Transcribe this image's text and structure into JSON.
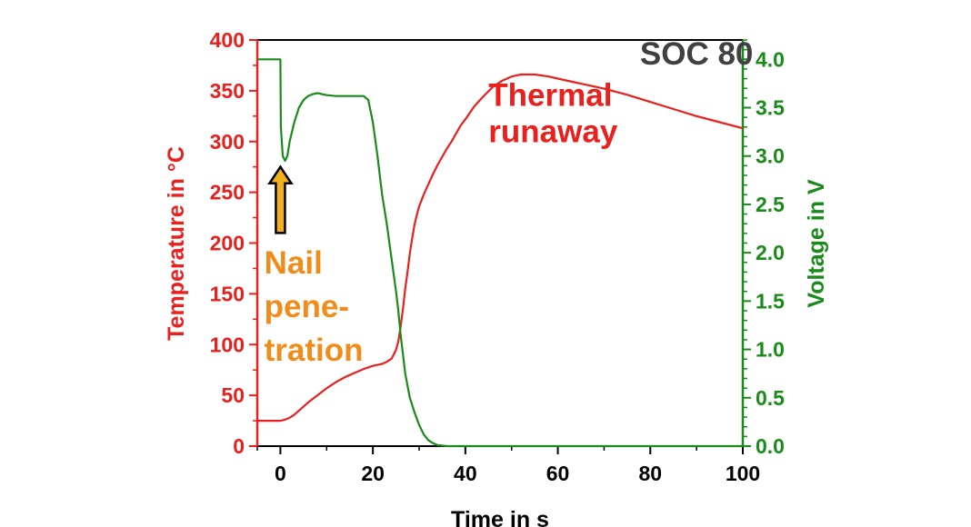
{
  "chart_data": {
    "type": "line",
    "title": "",
    "xlabel": "Time in s",
    "ylabel": "Temperature in °C",
    "y2label": "Voltage in V",
    "xlim": [
      -5,
      100
    ],
    "ylim": [
      0,
      400
    ],
    "y2lim": [
      0,
      4.2
    ],
    "x_ticks": [
      "0",
      "20",
      "40",
      "60",
      "80",
      "100"
    ],
    "y_ticks": [
      "0",
      "50",
      "100",
      "150",
      "200",
      "250",
      "300",
      "350",
      "400"
    ],
    "y2_ticks": [
      "0.0",
      "0.5",
      "1.0",
      "1.5",
      "2.0",
      "2.5",
      "3.0",
      "3.5",
      "4.0"
    ],
    "grid": false,
    "colors": {
      "temperature": "#e8201e",
      "voltage": "#1a8a1a",
      "annotation_nail": "#f08c1a",
      "soc_label": "#404040",
      "arrow_fill": "#f2b01e"
    },
    "series": [
      {
        "axis": "left",
        "x": [
          -5,
          -1,
          0,
          1,
          2,
          3,
          4,
          5,
          6,
          8,
          10,
          12,
          14,
          16,
          18,
          20,
          21,
          22,
          23,
          24,
          24.5,
          25,
          25.5,
          26,
          26.5,
          27,
          27.5,
          28,
          28.5,
          29,
          29.5,
          30,
          31,
          32,
          33,
          34,
          35,
          36,
          37,
          38,
          39,
          40,
          42,
          44,
          46,
          48,
          50,
          52,
          55,
          58,
          60,
          65,
          70,
          75,
          80,
          85,
          90,
          95,
          100
        ],
        "y": [
          25,
          25,
          25,
          26,
          28,
          31,
          35,
          39,
          43,
          50,
          57,
          63,
          68,
          72,
          76,
          79,
          80,
          81,
          83,
          86,
          90,
          95,
          103,
          118,
          135,
          155,
          172,
          190,
          205,
          218,
          228,
          236,
          248,
          258,
          268,
          277,
          285,
          293,
          300,
          308,
          316,
          322,
          335,
          345,
          354,
          360,
          364,
          366,
          366,
          364,
          362,
          357,
          352,
          346,
          339,
          332,
          325,
          319,
          313
        ]
      },
      {
        "axis": "right",
        "x": [
          -5,
          0,
          0.1,
          0.5,
          1,
          1.5,
          2,
          3,
          4,
          5,
          6,
          7,
          8,
          10,
          12,
          14,
          16,
          18,
          19,
          20,
          21,
          22,
          23,
          24,
          25,
          25.5,
          26,
          26.5,
          27,
          28,
          29,
          30,
          31,
          32,
          33,
          34,
          36,
          40,
          50,
          100
        ],
        "y": [
          4.0,
          4.0,
          3.3,
          3.0,
          2.95,
          3.0,
          3.15,
          3.35,
          3.5,
          3.58,
          3.62,
          3.64,
          3.65,
          3.63,
          3.62,
          3.62,
          3.62,
          3.62,
          3.58,
          3.35,
          3.0,
          2.6,
          2.3,
          1.95,
          1.6,
          1.4,
          1.15,
          0.95,
          0.75,
          0.5,
          0.35,
          0.22,
          0.12,
          0.06,
          0.03,
          0.01,
          0.0,
          0.0,
          0.0,
          0.0
        ]
      }
    ],
    "annotations": [
      {
        "lines": [
          "Thermal",
          "runaway"
        ],
        "x": 45,
        "y": 335
      },
      {
        "lines": [
          "Nail",
          "pene-",
          "tration"
        ],
        "x": -3.5,
        "y": 170
      },
      {
        "lines": [
          "SOC 80"
        ],
        "x": 90,
        "y": 376
      },
      {
        "lines": [],
        "arrow": true,
        "x": 0,
        "y_from": 210,
        "y_to": 275
      }
    ]
  }
}
